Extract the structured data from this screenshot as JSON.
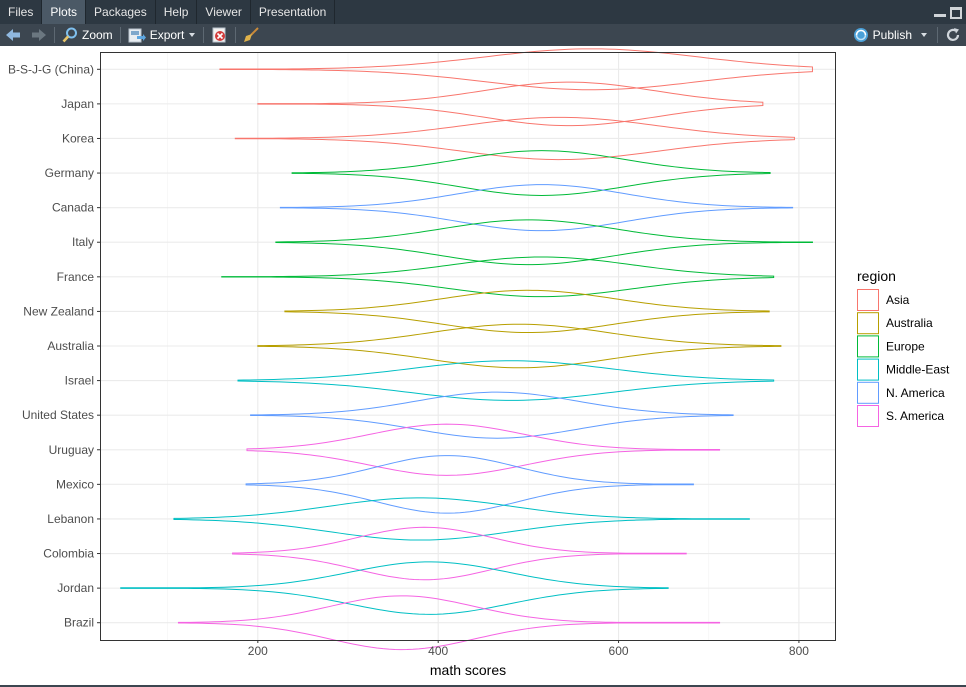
{
  "tabs": [
    {
      "label": "Files",
      "active": false
    },
    {
      "label": "Plots",
      "active": true
    },
    {
      "label": "Packages",
      "active": false
    },
    {
      "label": "Help",
      "active": false
    },
    {
      "label": "Viewer",
      "active": false
    },
    {
      "label": "Presentation",
      "active": false
    }
  ],
  "toolbar": {
    "zoom_label": "Zoom",
    "export_label": "Export",
    "publish_label": "Publish"
  },
  "chart_data": {
    "type": "violin",
    "orientation": "horizontal",
    "xlabel": "math scores",
    "ylabel": "",
    "xlim": [
      25,
      840
    ],
    "xticks": [
      200,
      400,
      600,
      800
    ],
    "grid": true,
    "legend": {
      "title": "region",
      "placement": "right",
      "entries": [
        {
          "name": "Asia",
          "color": "#F8766D"
        },
        {
          "name": "Australia",
          "color": "#B79F00"
        },
        {
          "name": "Europe",
          "color": "#00BA38"
        },
        {
          "name": "Middle-East",
          "color": "#00BFC4"
        },
        {
          "name": "N. America",
          "color": "#619CFF"
        },
        {
          "name": "S. America",
          "color": "#F564E3"
        }
      ]
    },
    "categories": [
      "B-S-J-G (China)",
      "Japan",
      "Korea",
      "Germany",
      "Canada",
      "Italy",
      "France",
      "New Zealand",
      "Australia",
      "Israel",
      "United States",
      "Uruguay",
      "Mexico",
      "Lebanon",
      "Colombia",
      "Jordan",
      "Brazil"
    ],
    "series": [
      {
        "country": "B-S-J-G (China)",
        "region": "Asia",
        "min": 158,
        "max": 815,
        "mode": 570,
        "spread": 118,
        "width": 0.32
      },
      {
        "country": "Japan",
        "region": "Asia",
        "min": 200,
        "max": 760,
        "mode": 545,
        "spread": 95,
        "width": 0.34
      },
      {
        "country": "Korea",
        "region": "Asia",
        "min": 175,
        "max": 795,
        "mode": 535,
        "spread": 108,
        "width": 0.33
      },
      {
        "country": "Germany",
        "region": "Europe",
        "min": 238,
        "max": 768,
        "mode": 515,
        "spread": 92,
        "width": 0.35
      },
      {
        "country": "Canada",
        "region": "N. America",
        "min": 225,
        "max": 793,
        "mode": 515,
        "spread": 92,
        "width": 0.36
      },
      {
        "country": "Italy",
        "region": "Europe",
        "min": 220,
        "max": 815,
        "mode": 500,
        "spread": 95,
        "width": 0.35
      },
      {
        "country": "France",
        "region": "Europe",
        "min": 160,
        "max": 772,
        "mode": 515,
        "spread": 100,
        "width": 0.31
      },
      {
        "country": "New Zealand",
        "region": "Australia",
        "min": 230,
        "max": 767,
        "mode": 500,
        "spread": 95,
        "width": 0.33
      },
      {
        "country": "Australia",
        "region": "Australia",
        "min": 200,
        "max": 780,
        "mode": 490,
        "spread": 100,
        "width": 0.34
      },
      {
        "country": "Israel",
        "region": "Middle-East",
        "min": 178,
        "max": 772,
        "mode": 480,
        "spread": 110,
        "width": 0.31
      },
      {
        "country": "United States",
        "region": "N. America",
        "min": 192,
        "max": 727,
        "mode": 465,
        "spread": 90,
        "width": 0.36
      },
      {
        "country": "Uruguay",
        "region": "S. America",
        "min": 188,
        "max": 712,
        "mode": 410,
        "spread": 85,
        "width": 0.4
      },
      {
        "country": "Mexico",
        "region": "N. America",
        "min": 187,
        "max": 683,
        "mode": 410,
        "spread": 78,
        "width": 0.45
      },
      {
        "country": "Lebanon",
        "region": "Middle-East",
        "min": 107,
        "max": 745,
        "mode": 380,
        "spread": 100,
        "width": 0.33
      },
      {
        "country": "Colombia",
        "region": "S. America",
        "min": 172,
        "max": 675,
        "mode": 385,
        "spread": 75,
        "width": 0.41
      },
      {
        "country": "Jordan",
        "region": "Middle-East",
        "min": 48,
        "max": 655,
        "mode": 390,
        "spread": 88,
        "width": 0.41
      },
      {
        "country": "Brazil",
        "region": "S. America",
        "min": 112,
        "max": 712,
        "mode": 360,
        "spread": 80,
        "width": 0.42
      }
    ]
  }
}
